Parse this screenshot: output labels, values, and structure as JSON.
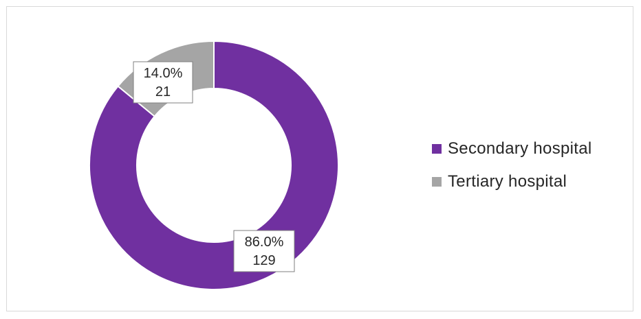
{
  "chart_data": {
    "type": "pie",
    "donut": true,
    "title": "",
    "slices": [
      {
        "name": "Secondary hospital",
        "count": "129",
        "percent_label": "86.0%",
        "value": 86.0,
        "color": "#7030a0"
      },
      {
        "name": "Tertiary hospital",
        "count": "21",
        "percent_label": "14.0%",
        "value": 14.0,
        "color": "#a5a5a5"
      }
    ],
    "legend_position": "right"
  }
}
